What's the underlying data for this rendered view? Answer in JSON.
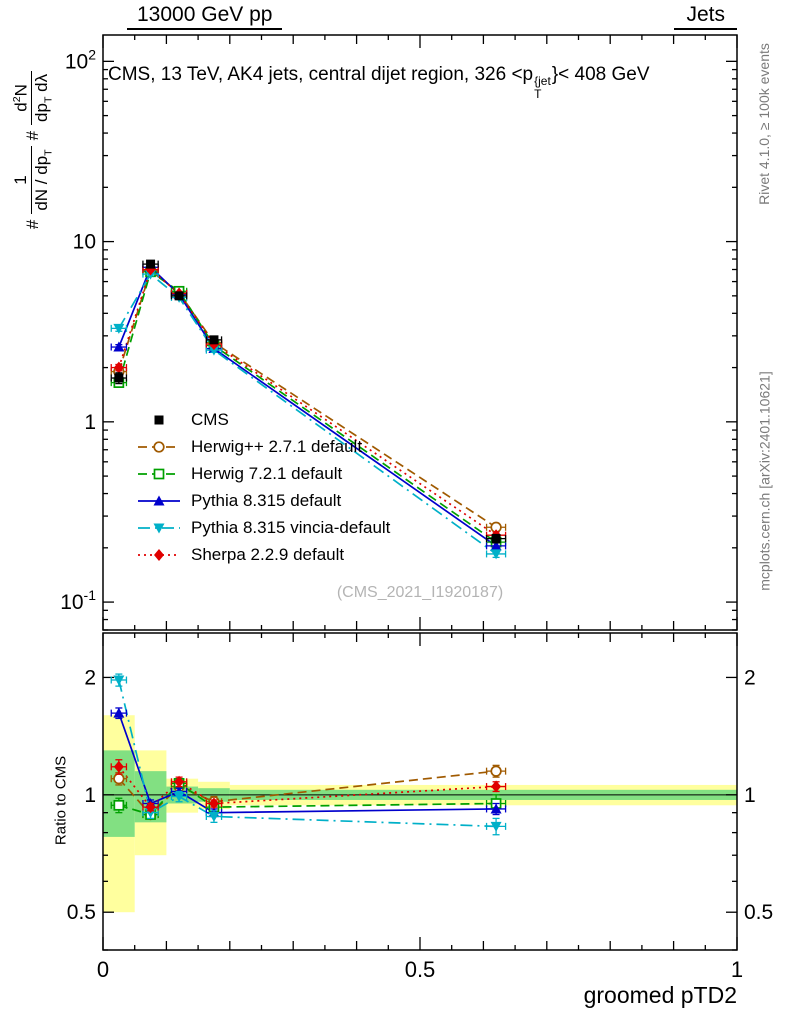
{
  "header": {
    "left": "13000 GeV pp",
    "right": "Jets"
  },
  "labels": {
    "title_pre": "CMS, 13 TeV, AK4 jets, central dijet region, 326 <p",
    "title_sup": "{jet",
    "title_sub": "T",
    "title_post": "}< 408 GeV",
    "ylabel": {
      "hash1": "#",
      "frac1_num": "1",
      "frac1_den_pre": "dN / dp",
      "frac1_den_sub": "T",
      "hash2": "#",
      "frac2_num_pre": "d",
      "frac2_num_sup": "2",
      "frac2_num_post": "N",
      "frac2_den_pre": "dp",
      "frac2_den_sub": "T",
      "frac2_den_post": " dλ"
    },
    "ratio_ylabel": "Ratio to CMS",
    "xlabel": "groomed pTD2",
    "watermark": "(CMS_2021_I1920187)"
  },
  "side_notes": {
    "top_right": "Rivet 4.1.0, ≥ 100k events",
    "bottom_right": "mcplots.cern.ch [arXiv:2401.10621]"
  },
  "chart_data": {
    "type": "line",
    "title": "CMS, 13 TeV, AK4 jets, central dijet region, 326 <p{jet/T}< 408 GeV",
    "xlabel": "groomed pTD2",
    "xlim": [
      0,
      1
    ],
    "xticks": [
      0,
      0.5,
      1
    ],
    "x": [
      0.025,
      0.075,
      0.12,
      0.175,
      0.62
    ],
    "x_err": [
      0.012,
      0.012,
      0.012,
      0.012,
      0.015
    ],
    "main": {
      "yscale": "log",
      "ylim": [
        0.07,
        140
      ],
      "yticks": [
        {
          "v": 100,
          "t": "10",
          "e": "2"
        },
        {
          "v": 10,
          "t": "10",
          "e": null
        },
        {
          "v": 1,
          "t": "1",
          "e": null
        },
        {
          "v": 0.1,
          "t": "10",
          "e": "-1"
        }
      ]
    },
    "ratio": {
      "yscale": "log",
      "ylim": [
        0.4,
        2.6
      ],
      "yticks": [
        2,
        1,
        0.5
      ],
      "band_colors": {
        "yellow": "#ffff9e",
        "green": "#82e082"
      },
      "bands": [
        {
          "x0": 0,
          "x1": 0.05,
          "yellow": [
            0.5,
            1.6
          ],
          "green": [
            0.78,
            1.3
          ]
        },
        {
          "x0": 0.05,
          "x1": 0.1,
          "yellow": [
            0.7,
            1.3
          ],
          "green": [
            0.85,
            1.15
          ]
        },
        {
          "x0": 0.1,
          "x1": 0.15,
          "yellow": [
            0.9,
            1.1
          ],
          "green": [
            0.95,
            1.05
          ]
        },
        {
          "x0": 0.15,
          "x1": 0.2,
          "yellow": [
            0.92,
            1.08
          ],
          "green": [
            0.96,
            1.04
          ]
        },
        {
          "x0": 0.2,
          "x1": 1,
          "yellow": [
            0.94,
            1.06
          ],
          "green": [
            0.97,
            1.03
          ]
        }
      ]
    },
    "series": [
      {
        "name": "CMS",
        "color": "#000000",
        "marker": "square-filled",
        "line": "none",
        "dash": null,
        "values": [
          1.75,
          7.5,
          5.0,
          2.85,
          0.225
        ],
        "yerr": [
          0.12,
          0.3,
          0.22,
          0.12,
          0.012
        ],
        "ratio": null,
        "ratio_err": null
      },
      {
        "name": "Herwig++ 2.7.1 default",
        "color": "#a05a00",
        "marker": "circle-open",
        "line": "dashed",
        "dash": "9,5",
        "values": [
          1.9,
          6.9,
          5.2,
          2.75,
          0.26
        ],
        "yerr": [
          0.07,
          0.15,
          0.12,
          0.08,
          0.01
        ],
        "ratio": [
          1.1,
          0.89,
          1.05,
          0.96,
          1.15
        ],
        "ratio_err": [
          0.04,
          0.02,
          0.03,
          0.03,
          0.04
        ]
      },
      {
        "name": "Herwig 7.2.1 default",
        "color": "#00a000",
        "marker": "square-open",
        "line": "dashed",
        "dash": "9,5",
        "values": [
          1.65,
          6.8,
          5.3,
          2.65,
          0.215
        ],
        "yerr": [
          0.07,
          0.15,
          0.12,
          0.08,
          0.012
        ],
        "ratio": [
          0.94,
          0.89,
          1.07,
          0.93,
          0.95
        ],
        "ratio_err": [
          0.04,
          0.02,
          0.03,
          0.03,
          0.05
        ]
      },
      {
        "name": "Pythia 8.315 default",
        "color": "#0000cc",
        "marker": "triangle-up-filled",
        "line": "solid",
        "dash": null,
        "values": [
          2.6,
          7.2,
          5.1,
          2.55,
          0.205
        ],
        "yerr": [
          0.08,
          0.15,
          0.1,
          0.07,
          0.008
        ],
        "ratio": [
          1.62,
          0.95,
          1.02,
          0.9,
          0.92
        ],
        "ratio_err": [
          0.05,
          0.02,
          0.02,
          0.02,
          0.03
        ]
      },
      {
        "name": "Pythia 8.315 vincia-default",
        "color": "#00b0c8",
        "marker": "triangle-down-filled",
        "line": "dashdot",
        "dash": "12,5,2,5",
        "values": [
          3.3,
          6.6,
          4.9,
          2.5,
          0.185
        ],
        "yerr": [
          0.12,
          0.15,
          0.1,
          0.07,
          0.008
        ],
        "ratio": [
          1.97,
          0.9,
          0.99,
          0.88,
          0.83
        ],
        "ratio_err": [
          0.07,
          0.03,
          0.03,
          0.03,
          0.04
        ]
      },
      {
        "name": "Sherpa 2.2.9 default",
        "color": "#e00000",
        "marker": "diamond-filled",
        "line": "dotted",
        "dash": "2,4",
        "values": [
          2.0,
          7.0,
          5.15,
          2.7,
          0.235
        ],
        "yerr": [
          0.08,
          0.15,
          0.1,
          0.07,
          0.01
        ],
        "ratio": [
          1.18,
          0.93,
          1.08,
          0.95,
          1.05
        ],
        "ratio_err": [
          0.05,
          0.02,
          0.03,
          0.02,
          0.03
        ]
      }
    ]
  }
}
